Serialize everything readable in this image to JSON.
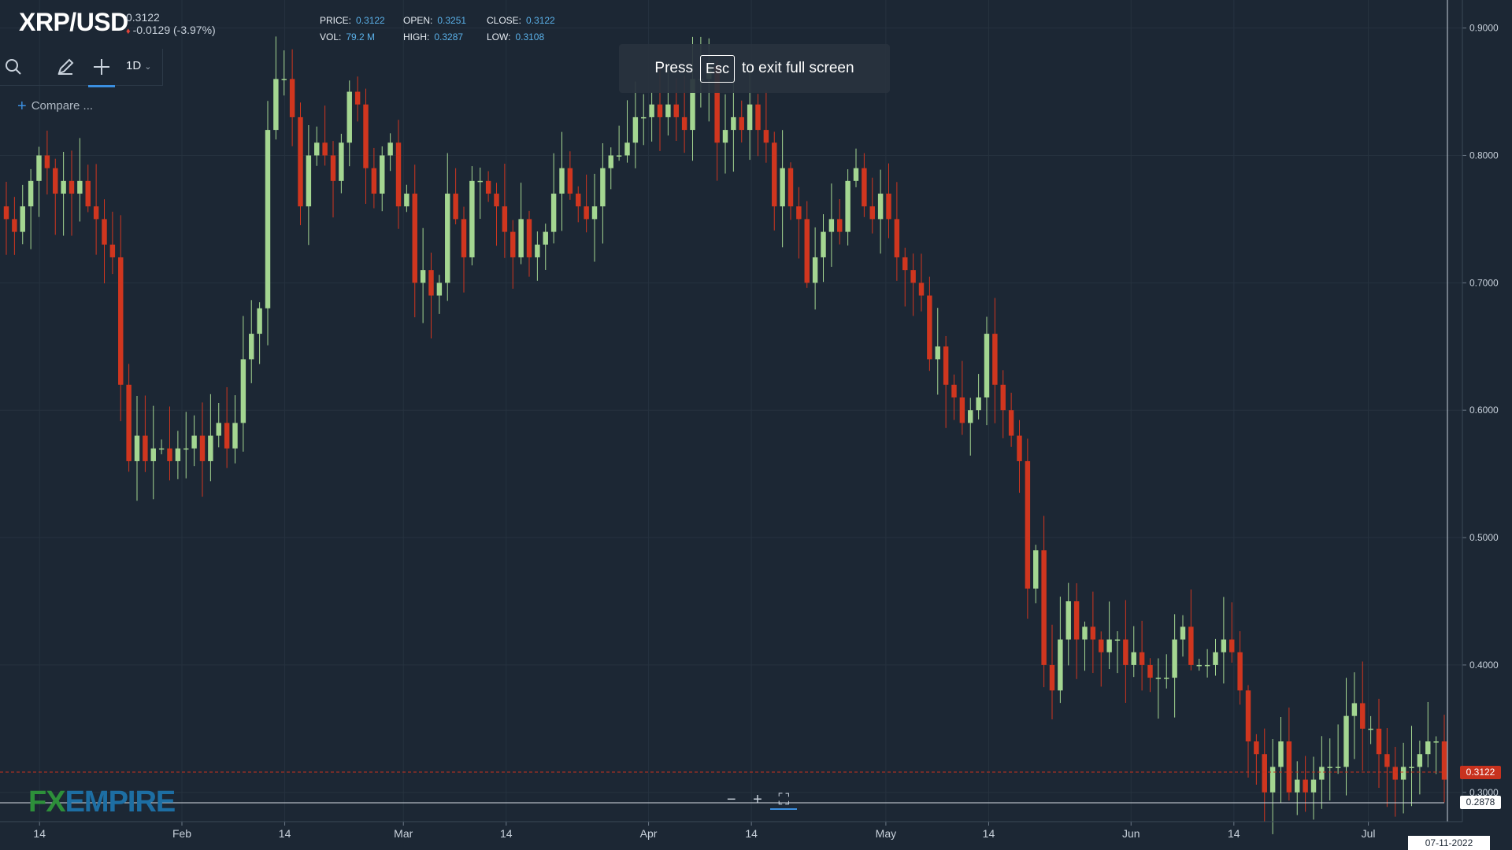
{
  "symbol": {
    "name": "XRP/USD",
    "price": "0.3122",
    "change_arrow": "♦",
    "change": "-0.0129 (-3.97%)"
  },
  "ohlc": {
    "price_label": "PRICE:",
    "price": "0.3122",
    "open_label": "OPEN:",
    "open": "0.3251",
    "close_label": "CLOSE:",
    "close": "0.3122",
    "vol_label": "VOL:",
    "vol": "79.2 M",
    "high_label": "HIGH:",
    "high": "0.3287",
    "low_label": "LOW:",
    "low": "0.3108"
  },
  "toolbar": {
    "interval": "1D",
    "compare_label": "Compare ..."
  },
  "fullscreen_notice": {
    "before": "Press",
    "key": "Esc",
    "after": "to exit full screen"
  },
  "price_tags": {
    "current": "0.3122",
    "low": "0.2878"
  },
  "date_tag": "07-11-2022",
  "logo": {
    "fx": "FX",
    "empire": "EMPIRE"
  },
  "colors": {
    "up": "#a4d691",
    "down": "#d0361f",
    "background": "#1c2734",
    "grid": "#26323f"
  },
  "chart_data": {
    "type": "candlestick",
    "y_axis_ticks": [
      "0.9000",
      "0.8000",
      "0.7000",
      "0.6000",
      "0.5000",
      "0.4000",
      "0.3000"
    ],
    "y_tick_values": [
      0.9,
      0.8,
      0.7,
      0.6,
      0.5,
      0.4,
      0.3
    ],
    "ylim": [
      0.277,
      0.922
    ],
    "x_axis_ticks": [
      {
        "label": "14",
        "date": "2022-01-14"
      },
      {
        "label": "Feb",
        "date": "2022-02-01"
      },
      {
        "label": "14",
        "date": "2022-02-14"
      },
      {
        "label": "Mar",
        "date": "2022-03-01"
      },
      {
        "label": "14",
        "date": "2022-03-14"
      },
      {
        "label": "Apr",
        "date": "2022-04-01"
      },
      {
        "label": "14",
        "date": "2022-04-14"
      },
      {
        "label": "May",
        "date": "2022-05-01"
      },
      {
        "label": "14",
        "date": "2022-05-14"
      },
      {
        "label": "Jun",
        "date": "2022-06-01"
      },
      {
        "label": "14",
        "date": "2022-06-14"
      },
      {
        "label": "Jul",
        "date": "2022-07-01"
      }
    ],
    "x_range": [
      "2022-01-09",
      "2022-07-11"
    ],
    "current_price": 0.3122,
    "min_price": 0.2878,
    "closes": [
      0.75,
      0.74,
      0.76,
      0.78,
      0.8,
      0.79,
      0.77,
      0.78,
      0.77,
      0.78,
      0.76,
      0.75,
      0.73,
      0.72,
      0.62,
      0.56,
      0.58,
      0.56,
      0.57,
      0.57,
      0.56,
      0.57,
      0.57,
      0.58,
      0.56,
      0.58,
      0.59,
      0.57,
      0.59,
      0.64,
      0.66,
      0.68,
      0.82,
      0.86,
      0.86,
      0.83,
      0.76,
      0.8,
      0.81,
      0.8,
      0.78,
      0.81,
      0.85,
      0.84,
      0.79,
      0.77,
      0.8,
      0.81,
      0.76,
      0.77,
      0.7,
      0.71,
      0.69,
      0.7,
      0.77,
      0.75,
      0.72,
      0.78,
      0.78,
      0.77,
      0.76,
      0.74,
      0.72,
      0.75,
      0.72,
      0.73,
      0.74,
      0.77,
      0.79,
      0.77,
      0.76,
      0.75,
      0.76,
      0.79,
      0.8,
      0.8,
      0.81,
      0.83,
      0.83,
      0.84,
      0.83,
      0.84,
      0.83,
      0.82,
      0.86,
      0.86,
      0.87,
      0.81,
      0.82,
      0.83,
      0.82,
      0.84,
      0.82,
      0.81,
      0.76,
      0.79,
      0.76,
      0.75,
      0.7,
      0.72,
      0.74,
      0.75,
      0.74,
      0.78,
      0.79,
      0.76,
      0.75,
      0.77,
      0.75,
      0.72,
      0.71,
      0.7,
      0.69,
      0.64,
      0.65,
      0.62,
      0.61,
      0.59,
      0.6,
      0.61,
      0.66,
      0.62,
      0.6,
      0.58,
      0.56,
      0.46,
      0.49,
      0.4,
      0.38,
      0.42,
      0.45,
      0.42,
      0.43,
      0.42,
      0.41,
      0.42,
      0.42,
      0.4,
      0.41,
      0.4,
      0.39,
      0.39,
      0.39,
      0.42,
      0.43,
      0.4,
      0.4,
      0.4,
      0.41,
      0.42,
      0.41,
      0.38,
      0.34,
      0.33,
      0.3,
      0.32,
      0.34,
      0.3,
      0.31,
      0.3,
      0.31,
      0.32,
      0.32,
      0.32,
      0.36,
      0.37,
      0.35,
      0.35,
      0.33,
      0.32,
      0.31,
      0.32,
      0.32,
      0.33,
      0.34,
      0.34,
      0.31
    ]
  }
}
